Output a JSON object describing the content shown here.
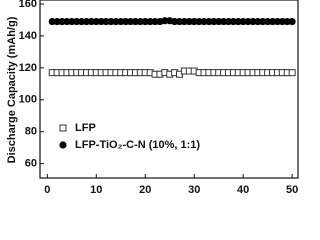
{
  "chart_data": {
    "type": "scatter",
    "ylabel": "Discharge Capacity (mAh/g)",
    "xlim": [
      -1.5,
      51.2
    ],
    "ylim": [
      51,
      162.5
    ],
    "xticks": [
      0,
      10,
      20,
      30,
      40,
      50
    ],
    "yticks": [
      60,
      80,
      100,
      120,
      140,
      160
    ],
    "legend": "lower-left",
    "x": [
      1,
      2,
      3,
      4,
      5,
      6,
      7,
      8,
      9,
      10,
      11,
      12,
      13,
      14,
      15,
      16,
      17,
      18,
      19,
      20,
      21,
      22,
      23,
      24,
      25,
      26,
      27,
      28,
      29,
      30,
      31,
      32,
      33,
      34,
      35,
      36,
      37,
      38,
      39,
      40,
      41,
      42,
      43,
      44,
      45,
      46,
      47,
      48,
      49,
      50
    ],
    "series": [
      {
        "name": "LFP",
        "color": "#333333",
        "marker": "open-square",
        "values": [
          117,
          117,
          117,
          117,
          117,
          117,
          117,
          117,
          117,
          117,
          117,
          117,
          117,
          117,
          117,
          117,
          117,
          117,
          117,
          117,
          117,
          116,
          116,
          117,
          116,
          117,
          116,
          118,
          118,
          118,
          117,
          117,
          117,
          117,
          117,
          117,
          117,
          117,
          117,
          117,
          117,
          117,
          117,
          117,
          117,
          117,
          117,
          117,
          117,
          117
        ]
      },
      {
        "name": "LFP-TiO₂-C-N (10%, 1:1)",
        "color": "#000000",
        "marker": "filled-circle",
        "values": [
          149,
          149,
          149,
          149,
          149,
          149,
          149,
          149,
          149,
          149,
          149,
          149,
          149,
          149,
          149,
          149,
          149,
          149,
          149,
          149,
          149,
          149,
          149,
          149.5,
          149.5,
          149,
          149,
          149,
          149,
          149,
          149,
          149,
          149,
          149,
          149,
          149,
          149,
          149,
          149,
          149,
          149,
          149,
          149,
          149,
          149,
          149,
          149,
          149,
          149,
          149
        ]
      }
    ]
  }
}
